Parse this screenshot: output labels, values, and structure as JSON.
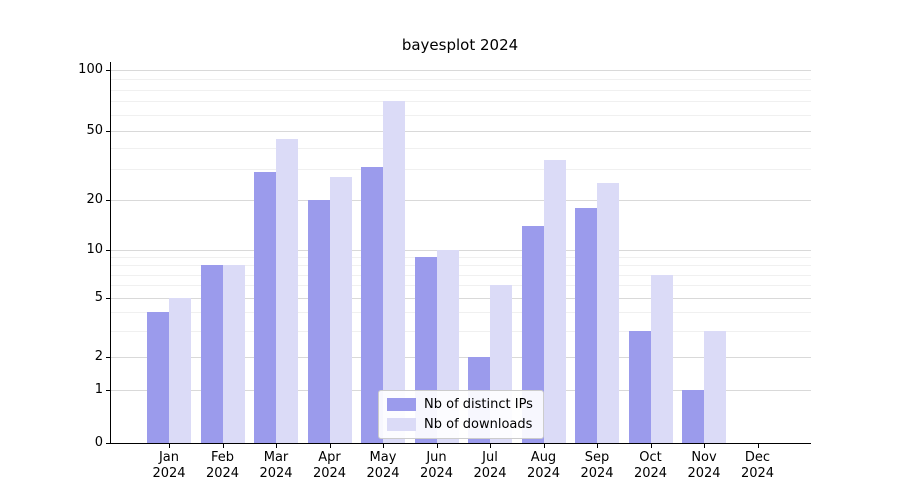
{
  "figure": {
    "title": "bayesplot 2024"
  },
  "chart_data": {
    "type": "bar",
    "title": "bayesplot 2024",
    "xlabel": "",
    "ylabel": "",
    "y_scale": "symlog",
    "ylim": [
      0,
      110
    ],
    "grid": true,
    "legend_position": "lower-center",
    "categories": [
      "Jan 2024",
      "Feb 2024",
      "Mar 2024",
      "Apr 2024",
      "May 2024",
      "Jun 2024",
      "Jul 2024",
      "Aug 2024",
      "Sep 2024",
      "Oct 2024",
      "Nov 2024",
      "Dec 2024"
    ],
    "y_ticks": [
      0,
      1,
      2,
      5,
      10,
      20,
      50,
      100
    ],
    "y_minor_ticks": [
      3,
      4,
      6,
      7,
      8,
      9,
      30,
      40,
      60,
      70,
      80,
      90
    ],
    "series": [
      {
        "name": "Nb of distinct IPs",
        "color": "#9b9bec",
        "values": [
          4,
          8,
          29,
          20,
          31,
          9,
          2,
          14,
          18,
          3,
          1,
          0
        ]
      },
      {
        "name": "Nb of downloads",
        "color": "#dbdbf7",
        "values": [
          5,
          8,
          45,
          27,
          70,
          10,
          6,
          34,
          25,
          7,
          3,
          0
        ]
      }
    ]
  }
}
